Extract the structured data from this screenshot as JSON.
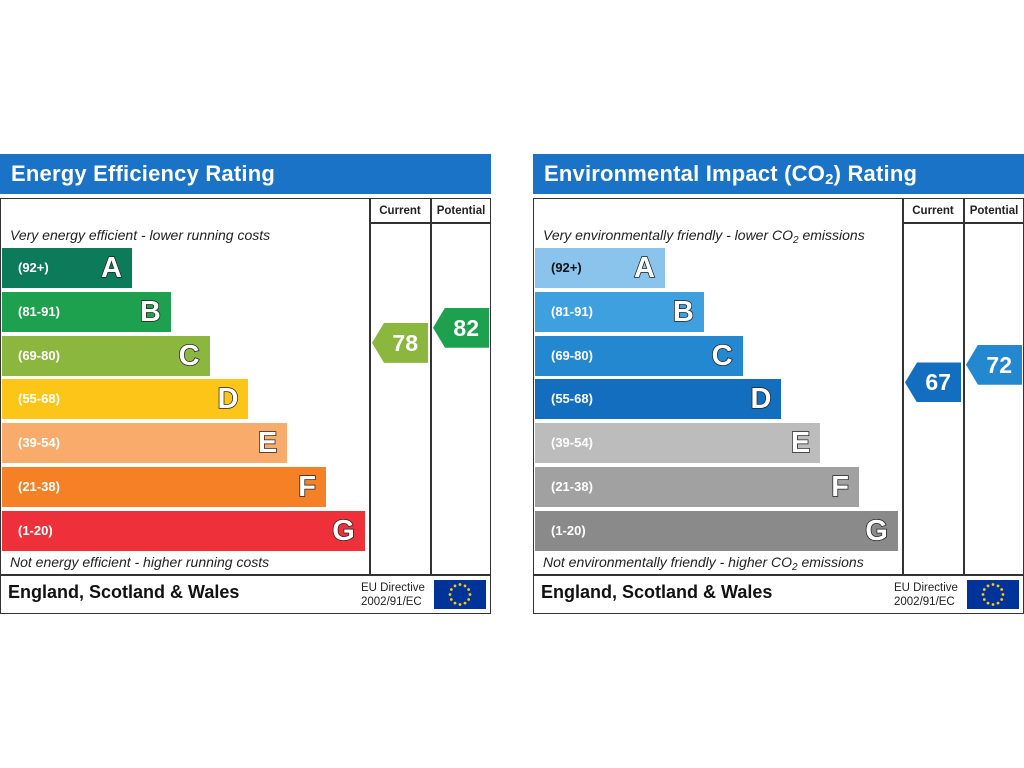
{
  "chart_data": [
    {
      "type": "bar",
      "title": "Energy Efficiency Rating",
      "column_headers": [
        "Current",
        "Potential"
      ],
      "top_note": "Very energy efficient - lower running costs",
      "bottom_note": "Not energy efficient - higher running costs",
      "categories": [
        "A",
        "B",
        "C",
        "D",
        "E",
        "F",
        "G"
      ],
      "ranges": [
        "(92+)",
        "(81-91)",
        "(69-80)",
        "(55-68)",
        "(39-54)",
        "(21-38)",
        "(1-20)"
      ],
      "colors": [
        "#0c7b5a",
        "#1da14f",
        "#8cb73f",
        "#fdc517",
        "#f8ab6a",
        "#f58025",
        "#ed3039"
      ],
      "range_text_dark": [
        false,
        false,
        false,
        false,
        false,
        false,
        false
      ],
      "current": 78,
      "potential": 82,
      "footer_region": "England, Scotland & Wales",
      "eu_directive": "EU Directive",
      "eu_code": "2002/91/EC"
    },
    {
      "type": "bar",
      "title": "Environmental Impact (CO",
      "title_sub": "2",
      "title_end": ") Rating",
      "column_headers": [
        "Current",
        "Potential"
      ],
      "top_note": "Very environmentally friendly - lower CO",
      "top_note_sub": "2",
      "top_note_end": " emissions",
      "bottom_note": "Not environmentally friendly - higher CO",
      "bottom_note_sub": "2",
      "bottom_note_end": " emissions",
      "categories": [
        "A",
        "B",
        "C",
        "D",
        "E",
        "F",
        "G"
      ],
      "ranges": [
        "(92+)",
        "(81-91)",
        "(69-80)",
        "(55-68)",
        "(39-54)",
        "(21-38)",
        "(1-20)"
      ],
      "colors": [
        "#8ac3ec",
        "#3fa0df",
        "#2388d0",
        "#146ec0",
        "#bdbcbc",
        "#a1a1a1",
        "#8a8a8a"
      ],
      "range_text_dark": [
        true,
        false,
        false,
        false,
        false,
        false,
        false
      ],
      "current": 67,
      "potential": 72,
      "footer_region": "England, Scotland & Wales",
      "eu_directive": "EU Directive",
      "eu_code": "2002/91/EC"
    }
  ]
}
